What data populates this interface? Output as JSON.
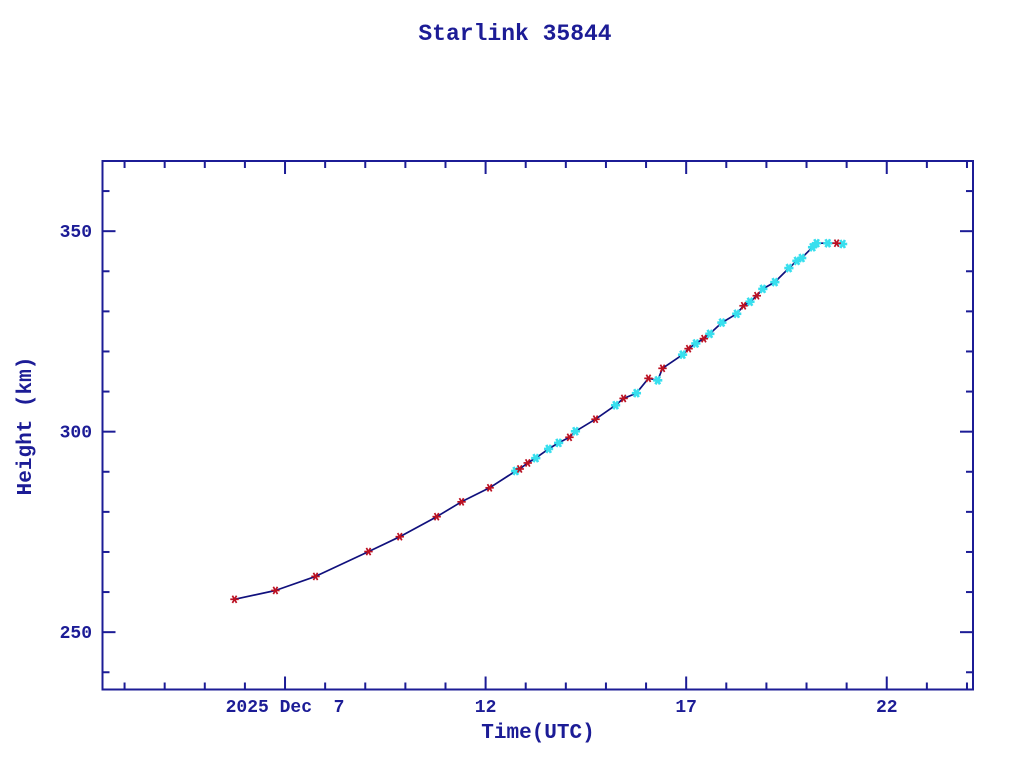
{
  "page": {
    "background": "#ffffff"
  },
  "chart_data": {
    "type": "line",
    "title": "Starlink 35844",
    "xlabel": "Time(UTC)",
    "ylabel": "Height (km)",
    "x_date_label": "2025 Dec  7",
    "xlim": [
      2.45,
      24.15
    ],
    "ylim": [
      235.7,
      367.5
    ],
    "grid": false,
    "legend": "none",
    "x_major_ticks": [
      7,
      12,
      17,
      22
    ],
    "x_major_tick_labels": [
      "2025 Dec  7",
      "12",
      "17",
      "22"
    ],
    "x_minor_tick_step_hours": 1,
    "y_major_ticks": [
      250,
      300,
      350
    ],
    "y_major_tick_labels": [
      "250",
      "300",
      "350"
    ],
    "y_minor_tick_step": 10,
    "colors": {
      "axis": "#1c1c96",
      "text": "#1c1c96",
      "line": "#10107d",
      "red_marker": "#bb1122",
      "cyan_marker": "#38dfee"
    },
    "series": [
      {
        "name": "red-asterisk-points",
        "marker": "asterisk",
        "color": "#bb1122",
        "points": [
          [
            5.74,
            258.2
          ],
          [
            6.76,
            260.4
          ],
          [
            7.76,
            263.9
          ],
          [
            9.08,
            270.1
          ],
          [
            9.86,
            273.8
          ],
          [
            10.78,
            278.8
          ],
          [
            11.4,
            282.5
          ],
          [
            12.1,
            286.0
          ],
          [
            12.85,
            290.7
          ],
          [
            13.05,
            292.2
          ],
          [
            14.09,
            298.6
          ],
          [
            14.74,
            303.1
          ],
          [
            15.44,
            308.3
          ],
          [
            16.06,
            313.3
          ],
          [
            16.41,
            315.8
          ],
          [
            17.06,
            320.7
          ],
          [
            17.44,
            323.2
          ],
          [
            18.43,
            331.4
          ],
          [
            18.76,
            333.9
          ],
          [
            20.75,
            347.0
          ]
        ]
      },
      {
        "name": "cyan-asterisk-points",
        "marker": "asterisk",
        "color": "#38dfee",
        "points": [
          [
            12.75,
            290.2
          ],
          [
            13.25,
            293.4
          ],
          [
            13.57,
            295.7
          ],
          [
            13.82,
            297.2
          ],
          [
            14.24,
            300.1
          ],
          [
            15.24,
            306.6
          ],
          [
            15.76,
            309.6
          ],
          [
            16.29,
            312.8
          ],
          [
            16.91,
            319.2
          ],
          [
            17.24,
            322.0
          ],
          [
            17.59,
            324.4
          ],
          [
            17.89,
            327.2
          ],
          [
            18.26,
            329.4
          ],
          [
            18.59,
            332.4
          ],
          [
            18.91,
            335.6
          ],
          [
            19.21,
            337.3
          ],
          [
            19.56,
            340.8
          ],
          [
            19.76,
            342.6
          ],
          [
            19.88,
            343.3
          ],
          [
            20.15,
            346.0
          ],
          [
            20.25,
            347.0
          ],
          [
            20.53,
            347.0
          ],
          [
            20.9,
            346.8
          ]
        ]
      }
    ]
  }
}
